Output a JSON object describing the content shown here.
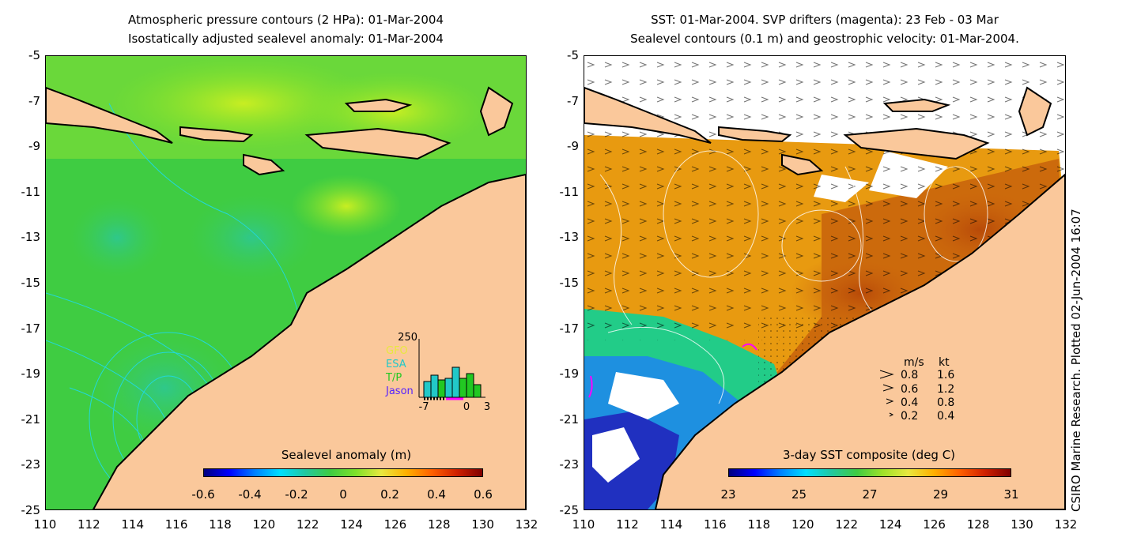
{
  "left_panel": {
    "title_line1": "Atmospheric pressure contours (2 HPa): 01-Mar-2004",
    "title_line2": "Isostatically adjusted sealevel anomaly: 01-Mar-2004",
    "colorbar_title": "Sealevel anomaly (m)",
    "colorbar_ticks": [
      "-0.6",
      "-0.4",
      "-0.2",
      "0",
      "0.2",
      "0.4",
      "0.6"
    ],
    "inset": {
      "ymax_label": "250",
      "legend": [
        {
          "label": "GFO",
          "color": "#e8e840"
        },
        {
          "label": "ESA",
          "color": "#22c8c8"
        },
        {
          "label": "T/P",
          "color": "#22c822"
        },
        {
          "label": "Jason",
          "color": "#5522ff"
        }
      ],
      "x_ticks": [
        "-7",
        "0",
        "3"
      ]
    }
  },
  "right_panel": {
    "title_line1": "SST: 01-Mar-2004. SVP drifters (magenta): 23 Feb - 03 Mar",
    "title_line2": "Sealevel contours (0.1 m) and geostrophic velocity: 01-Mar-2004.",
    "colorbar_title": "3-day SST composite (deg C)",
    "colorbar_ticks": [
      "23",
      "25",
      "27",
      "29",
      "31"
    ],
    "velocity_legend": {
      "header_ms": "m/s",
      "header_kt": "kt",
      "rows": [
        {
          "ms": "0.8",
          "kt": "1.6"
        },
        {
          "ms": "0.6",
          "kt": "1.2"
        },
        {
          "ms": "0.4",
          "kt": "0.8"
        },
        {
          "ms": "0.2",
          "kt": "0.4"
        }
      ]
    }
  },
  "axes": {
    "y_ticks": [
      "-5",
      "-7",
      "-9",
      "-11",
      "-13",
      "-15",
      "-17",
      "-19",
      "-21",
      "-23",
      "-25"
    ],
    "x_ticks": [
      "110",
      "112",
      "114",
      "116",
      "118",
      "120",
      "122",
      "124",
      "126",
      "128",
      "130",
      "132"
    ]
  },
  "credit": "CSIRO Marine Research. Plotted 02-Jun-2004 16:07",
  "colors": {
    "land": "#fac89b",
    "coastline": "#000000",
    "pressure_contour": "#22d8d8",
    "sst_contour": "#ffffff",
    "drifter": "#ff00ff"
  }
}
